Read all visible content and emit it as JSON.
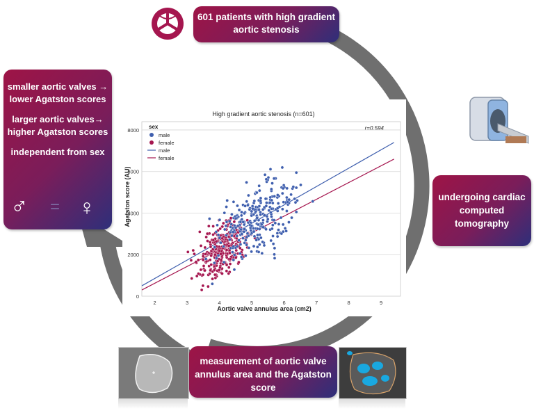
{
  "steps": {
    "patients": "601 patients with high gradient aortic stenosis",
    "ct": "undergoing cardiac computed tomography",
    "measurement": "measurement of aortic valve annulus area and the Agatston score",
    "findings": [
      "smaller aortic valves → lower Agatston scores",
      "larger aortic valves→ higher Agatston scores",
      "independent from sex"
    ]
  },
  "symbols": {
    "male": "♂",
    "equal": "=",
    "female": "♀"
  },
  "colors": {
    "box_start": "#9e1446",
    "box_end": "#2e2f7a",
    "ring": "#6f6f6f",
    "male": "#3f5fae",
    "female": "#a5164f"
  },
  "icons": [
    "aortic-valve-icon",
    "ct-scanner-icon"
  ],
  "chart_data": {
    "type": "scatter",
    "title": "High gradient aortic stenosis (n=601)",
    "xlabel": "Aortic valve annulus area (cm2)",
    "ylabel": "Agatston score (AU)",
    "xlim": [
      1.6,
      9.6
    ],
    "ylim": [
      0,
      8400
    ],
    "x_ticks": [
      2,
      3,
      4,
      5,
      6,
      7,
      8,
      9
    ],
    "y_ticks": [
      0,
      2000,
      4000,
      6000,
      8000
    ],
    "grid": "horizontal",
    "annotation": "r=0.594",
    "legend": {
      "title": "sex",
      "position": "top-left",
      "entries": [
        "male",
        "female",
        "male",
        "female"
      ]
    },
    "series": [
      {
        "name": "male",
        "color": "#3f5fae",
        "fit": {
          "x": [
            1.6,
            9.4
          ],
          "y": [
            500,
            7400
          ]
        }
      },
      {
        "name": "female",
        "color": "#a5164f",
        "fit": {
          "x": [
            1.6,
            9.4
          ],
          "y": [
            300,
            6600
          ]
        }
      }
    ]
  }
}
